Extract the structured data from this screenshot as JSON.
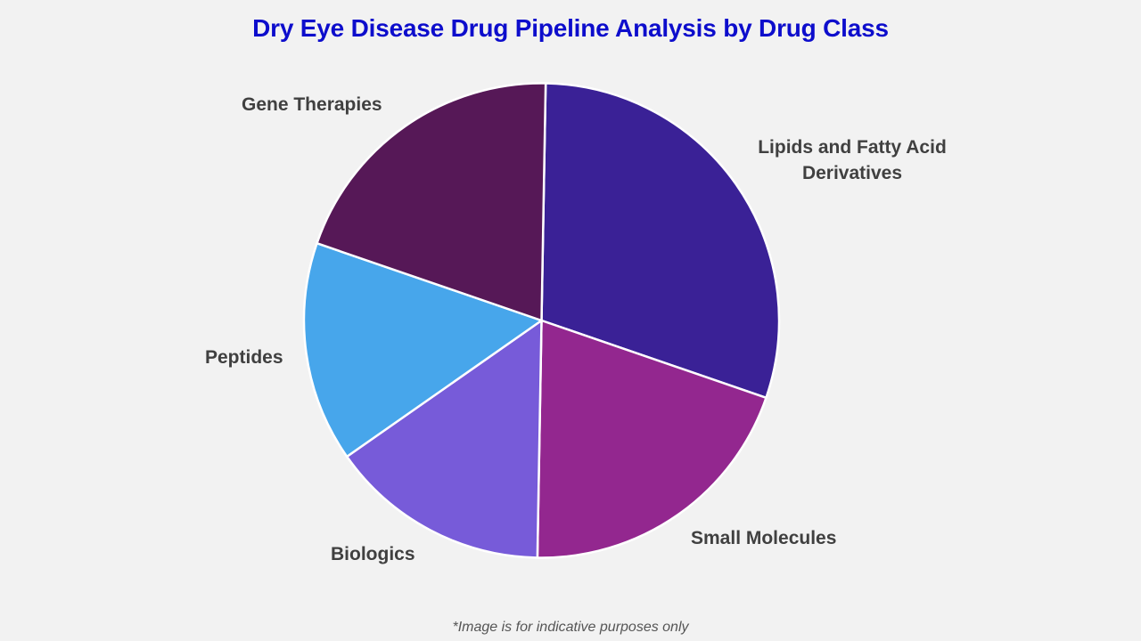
{
  "chart_data": {
    "type": "pie",
    "title": "Dry Eye Disease Drug Pipeline Analysis by Drug Class",
    "categories": [
      "Lipids and Fatty Acid Derivatives",
      "Small Molecules",
      "Biologics",
      "Peptides",
      "Gene Therapies"
    ],
    "values": [
      30,
      20,
      15,
      15,
      20
    ],
    "colors": [
      "#3a2196",
      "#93278f",
      "#775bd9",
      "#47a6eb",
      "#561857"
    ],
    "start_angle_deg": 1,
    "direction": "clockwise",
    "legend": "none (direct labels)",
    "footnote": "*Image is for indicative purposes only"
  },
  "labels": {
    "lipids_line1": "Lipids and Fatty Acid",
    "lipids_line2": "Derivatives",
    "small_molecules": "Small Molecules",
    "biologics": "Biologics",
    "peptides": "Peptides",
    "gene_therapies": "Gene Therapies"
  },
  "colors": {
    "title": "#0d0dcc",
    "background": "#f2f2f2",
    "label_text": "#404040",
    "slice_border": "#ffffff"
  }
}
